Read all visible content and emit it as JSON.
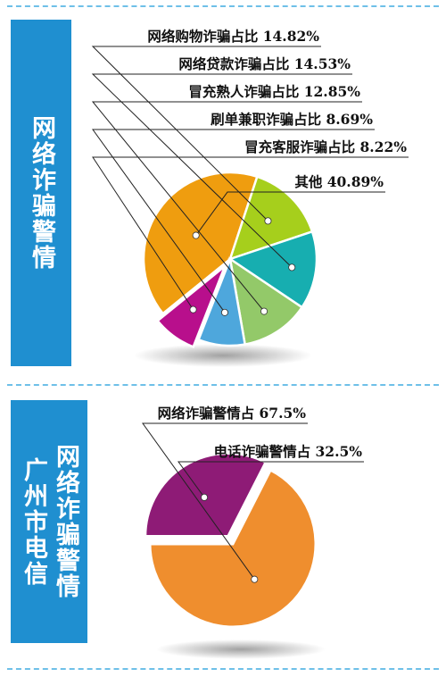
{
  "panel1": {
    "title": "网络诈骗警情"
  },
  "panel2": {
    "title_col_right": "网络诈骗警情",
    "title_col_left": "广州市电信"
  },
  "colors": {
    "accent_blue": "#1f8fd0",
    "divider": "#6ec0e8"
  },
  "chart_data": [
    {
      "type": "pie",
      "title": "",
      "slices": [
        {
          "label": "其他 40.89%",
          "value": 40.89,
          "color": "#ef9d0f"
        },
        {
          "label": "网络购物诈骗占比 14.82%",
          "value": 14.82,
          "color": "#a6cf1c"
        },
        {
          "label": "网络贷款诈骗占比 14.53%",
          "value": 14.53,
          "color": "#17aeb0"
        },
        {
          "label": "冒充熟人诈骗占比 12.85%",
          "value": 12.85,
          "color": "#93c969"
        },
        {
          "label": "刷单兼职诈骗占比 8.69%",
          "value": 8.69,
          "color": "#4ea7dc"
        },
        {
          "label": "冒充客服诈骗占比 8.22%",
          "value": 8.22,
          "color": "#b80f8c"
        }
      ]
    },
    {
      "type": "pie",
      "title": "",
      "slices": [
        {
          "label": "网络诈骗警情占 67.5%",
          "value": 67.5,
          "color": "#ef8e2e"
        },
        {
          "label": "电话诈骗警情占 32.5%",
          "value": 32.5,
          "color": "#8e1b76"
        }
      ]
    }
  ]
}
